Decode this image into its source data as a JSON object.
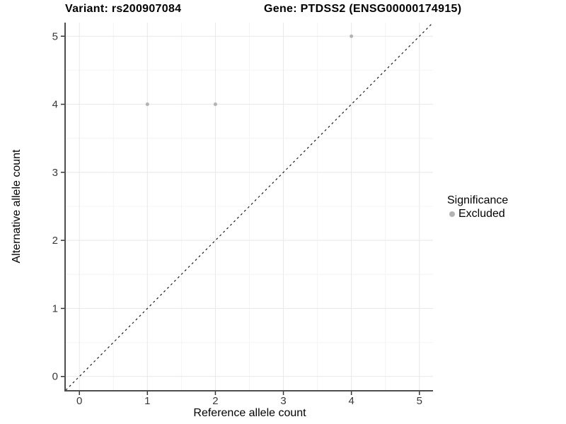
{
  "title": {
    "left": "Variant: rs200907084",
    "right": "Gene: PTDSS2 (ENSG00000174915)"
  },
  "legend": {
    "title": "Significance",
    "items": [
      {
        "label": "Excluded",
        "color": "#b3b3b3"
      }
    ]
  },
  "chart_data": {
    "type": "scatter",
    "xlabel": "Reference allele count",
    "ylabel": "Alternative allele count",
    "xlim": [
      -0.2,
      5.2
    ],
    "ylim": [
      -0.2,
      5.2
    ],
    "xticks": [
      0,
      1,
      2,
      3,
      4,
      5
    ],
    "yticks": [
      0,
      1,
      2,
      3,
      4,
      5
    ],
    "minor_gridlines_x": [
      0.5,
      1.5,
      2.5,
      3.5,
      4.5
    ],
    "minor_gridlines_y": [
      0.5,
      1.5,
      2.5,
      3.5,
      4.5
    ],
    "grid": true,
    "legend_position": "right",
    "series": [
      {
        "name": "Excluded",
        "color": "#b3b3b3",
        "points": [
          {
            "x": 1,
            "y": 4
          },
          {
            "x": 2,
            "y": 4
          },
          {
            "x": 4,
            "y": 5
          }
        ]
      }
    ],
    "reference_line": {
      "type": "identity",
      "slope": 1,
      "intercept": 0,
      "style": "dashed",
      "color": "#1c1c1c"
    },
    "colors": {
      "grid_major": "#e8e8e8",
      "grid_minor": "#f4f4f4",
      "axis_line": "#4d4d4d",
      "tick_mark": "#333333",
      "tick_label": "#383838",
      "panel_background": "#ffffff"
    }
  }
}
